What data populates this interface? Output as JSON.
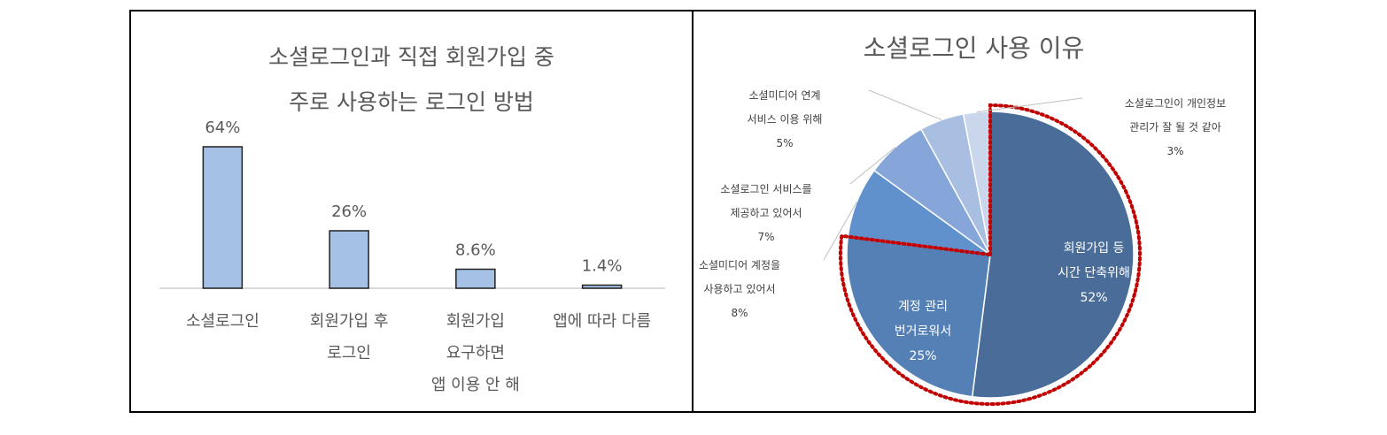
{
  "charts": [
    {
      "title_line1": "소셜로그인과 직접 회원가입 중",
      "title_line2": "주로 사용하는 로그인 방법"
    },
    {
      "title": "소셜로그인 사용 이유"
    }
  ],
  "chart_data": [
    {
      "type": "bar",
      "title": "소셜로그인과 직접 회원가입 중 주로 사용하는 로그인 방법",
      "categories": [
        [
          "소셜로그인"
        ],
        [
          "회원가입 후",
          "로그인"
        ],
        [
          "회원가입",
          "요구하면",
          "앱 이용 안 해"
        ],
        [
          "앱에 따라 다름"
        ]
      ],
      "values": [
        64,
        26,
        8.6,
        1.4
      ],
      "value_labels": [
        "64%",
        "26%",
        "8.6%",
        "1.4%"
      ],
      "ylim": [
        0,
        70
      ],
      "grid": false,
      "bar_color": "#a6c1e6",
      "bar_outline": "#222222"
    },
    {
      "type": "pie",
      "title": "소셜로그인 사용 이유",
      "start": "12 o'clock, clockwise",
      "slices": [
        {
          "lines": [
            "회원가입 등",
            "시간 단축위해",
            "52%"
          ],
          "value": 52,
          "color": "#4a6c98",
          "label_inside": true
        },
        {
          "lines": [
            "계정 관리",
            "번거로워서",
            "25%"
          ],
          "value": 25,
          "color": "#5480b6",
          "label_inside": true
        },
        {
          "lines": [
            "소셜미디어 계정을",
            "사용하고 있어서",
            "8%"
          ],
          "value": 8,
          "color": "#6191cd",
          "label_inside": false
        },
        {
          "lines": [
            "소셜로그인 서비스를",
            "제공하고 있어서",
            "7%"
          ],
          "value": 7,
          "color": "#86a6d9",
          "label_inside": false
        },
        {
          "lines": [
            "소셜미디어 연계",
            "서비스 이용 위해",
            "5%"
          ],
          "value": 5,
          "color": "#a8bfe2",
          "label_inside": false
        },
        {
          "lines": [
            "소셜로그인이 개인정보",
            "관리가 잘 될 것 같아",
            "3%"
          ],
          "value": 3,
          "color": "#c9d6ec",
          "label_inside": false
        }
      ],
      "highlight": {
        "slices": [
          0,
          1
        ],
        "style": "dotted",
        "color": "#c00000"
      }
    }
  ]
}
